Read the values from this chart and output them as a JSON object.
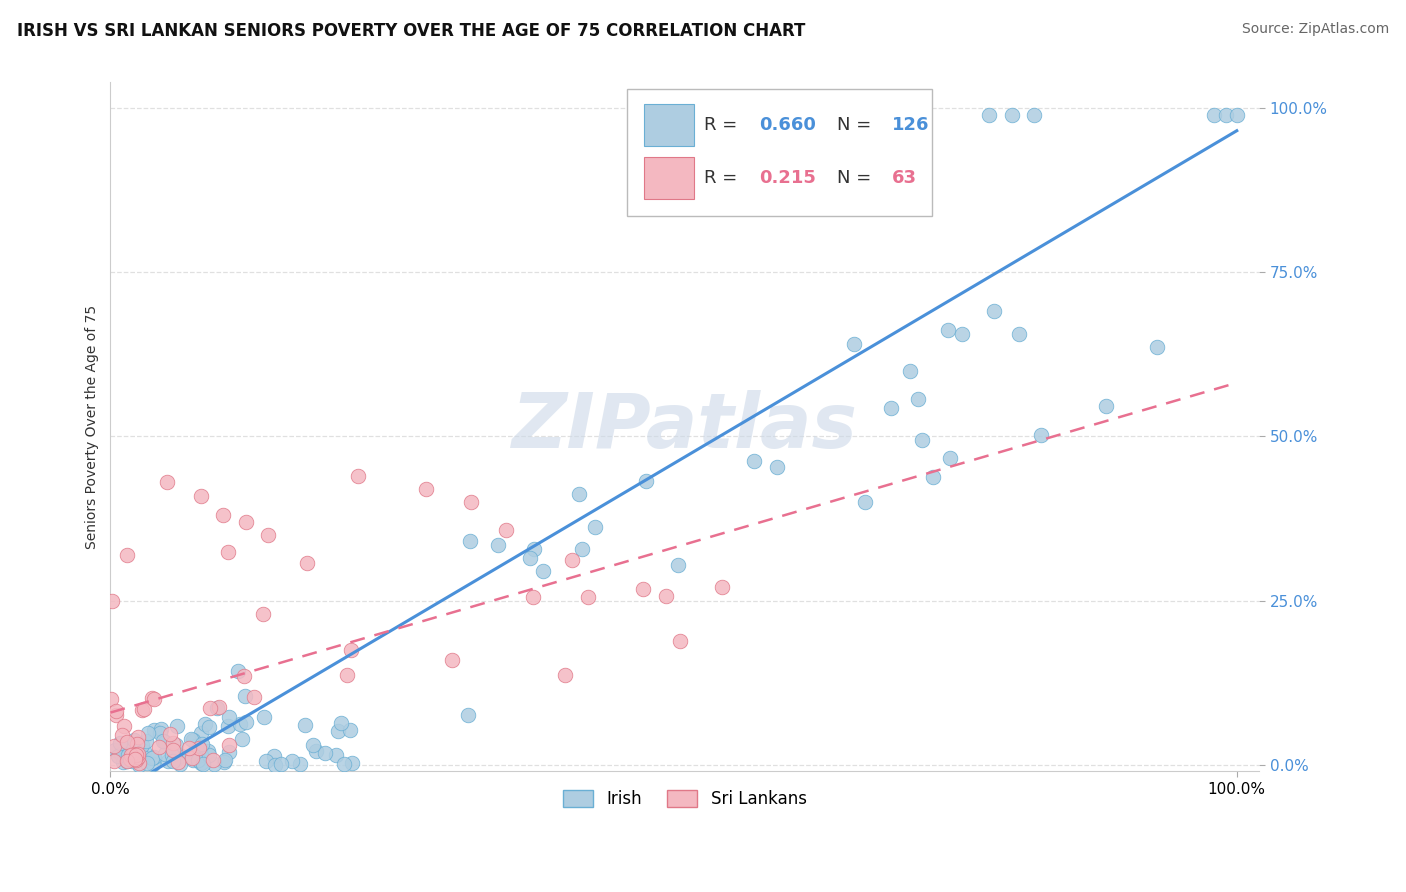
{
  "title": "IRISH VS SRI LANKAN SENIORS POVERTY OVER THE AGE OF 75 CORRELATION CHART",
  "source": "Source: ZipAtlas.com",
  "ylabel": "Seniors Poverty Over the Age of 75",
  "irish_R": 0.66,
  "irish_N": 126,
  "sri_R": 0.215,
  "sri_N": 63,
  "irish_color": "#aecde1",
  "irish_edge_color": "#6aafd4",
  "sri_color": "#f4b8c1",
  "sri_edge_color": "#e07888",
  "irish_line_color": "#4a90d9",
  "sri_line_color": "#e87090",
  "watermark_text": "ZIPatlas",
  "watermark_color": "#ccd8e8",
  "background_color": "#ffffff",
  "grid_color": "#dddddd",
  "title_color": "#111111",
  "source_color": "#666666",
  "ytick_color": "#4a90d9",
  "legend_r_color_irish": "#4a90d9",
  "legend_r_color_sri": "#e87090",
  "legend_text_color": "#333333",
  "title_fontsize": 12,
  "source_fontsize": 10,
  "axis_label_fontsize": 10,
  "tick_fontsize": 11,
  "legend_fontsize": 13,
  "watermark_fontsize": 55,
  "irish_line_slope": 0.76,
  "irish_line_intercept": -0.01,
  "sri_line_slope": 0.22,
  "sri_line_intercept": 0.14
}
